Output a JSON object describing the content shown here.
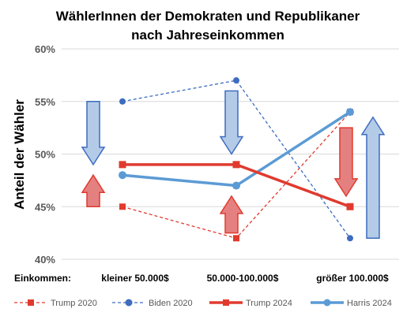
{
  "chart_data": {
    "type": "line",
    "title_line1": "WählerInnen der Demokraten und Republikaner",
    "title_line2": "nach Jahreseinkommen",
    "ylabel": "Anteil der Wähler",
    "x_prefix_label": "Einkommen:",
    "categories": [
      "kleiner 50.000$",
      "50.000-100.000$",
      "größer 100.000$"
    ],
    "ylim": [
      40,
      60
    ],
    "yticks": [
      40,
      45,
      50,
      55,
      60
    ],
    "ytick_labels": [
      "40%",
      "45%",
      "50%",
      "55%",
      "60%"
    ],
    "grid": true,
    "legend_position": "bottom",
    "series": [
      {
        "name": "Trump 2020",
        "values": [
          45,
          42,
          54
        ],
        "color": "#e03a2f",
        "style": "dashed",
        "marker": "square"
      },
      {
        "name": "Biden 2020",
        "values": [
          55,
          57,
          42
        ],
        "color": "#3d6cc0",
        "style": "dashed",
        "marker": "circle"
      },
      {
        "name": "Trump 2024",
        "values": [
          49,
          49,
          45
        ],
        "color": "#e03a2f",
        "style": "solid",
        "marker": "square"
      },
      {
        "name": "Harris 2024",
        "values": [
          48,
          47,
          54
        ],
        "color": "#5b9bd5",
        "style": "solid",
        "marker": "circle"
      }
    ],
    "arrows": [
      {
        "category_index": 0,
        "direction": "down",
        "from": 55,
        "to": 49,
        "color": "#b4cbe8",
        "stroke": "#3d6cc0"
      },
      {
        "category_index": 0,
        "direction": "up",
        "from": 45,
        "to": 48,
        "color": "#e58080",
        "stroke": "#e03a2f"
      },
      {
        "category_index": 1,
        "direction": "down",
        "from": 56,
        "to": 50,
        "color": "#b4cbe8",
        "stroke": "#3d6cc0"
      },
      {
        "category_index": 1,
        "direction": "up",
        "from": 42.5,
        "to": 46,
        "color": "#e58080",
        "stroke": "#e03a2f"
      },
      {
        "category_index": 2,
        "direction": "down",
        "from": 52.5,
        "to": 46,
        "color": "#e58080",
        "stroke": "#e03a2f"
      },
      {
        "category_index": 2,
        "direction": "up",
        "from": 42,
        "to": 53.5,
        "color": "#b4cbe8",
        "stroke": "#3d6cc0"
      }
    ]
  }
}
